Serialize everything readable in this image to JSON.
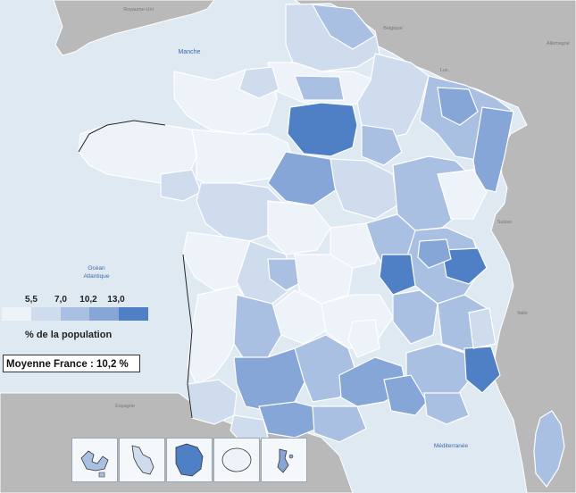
{
  "map": {
    "water_labels": {
      "manche": "Manche",
      "ocean": [
        "Océan",
        "Atlantique"
      ],
      "mediterranee": "Méditerranée"
    },
    "country_labels": {
      "royaume_uni": "Royaume-Uni",
      "belgique": "Belgique",
      "allemagne": "Allemagne",
      "luxembourg": "Lux.",
      "suisse": "Suisse",
      "italie": "Italie",
      "espagne": "Espagne"
    },
    "colors": {
      "sea": "#dfe9f2",
      "land_foreign": "#b9b9b9",
      "border": "#ffffff",
      "class_1": "#eef3f9",
      "class_2": "#cfdcee",
      "class_3": "#a9c0e2",
      "class_4": "#86a6d8",
      "class_5": "#4f7fc4"
    }
  },
  "legend": {
    "ticks": [
      "5,5",
      "7,0",
      "10,2",
      "13,0"
    ],
    "title": "% de la population",
    "colors": [
      "#eef3f9",
      "#cfdcee",
      "#a9c0e2",
      "#86a6d8",
      "#4f7fc4"
    ]
  },
  "average_box": {
    "text": "Moyenne France : 10,2 %"
  },
  "overseas_insets": {
    "count": 5,
    "classes": [
      3,
      2,
      5,
      1,
      4
    ]
  }
}
